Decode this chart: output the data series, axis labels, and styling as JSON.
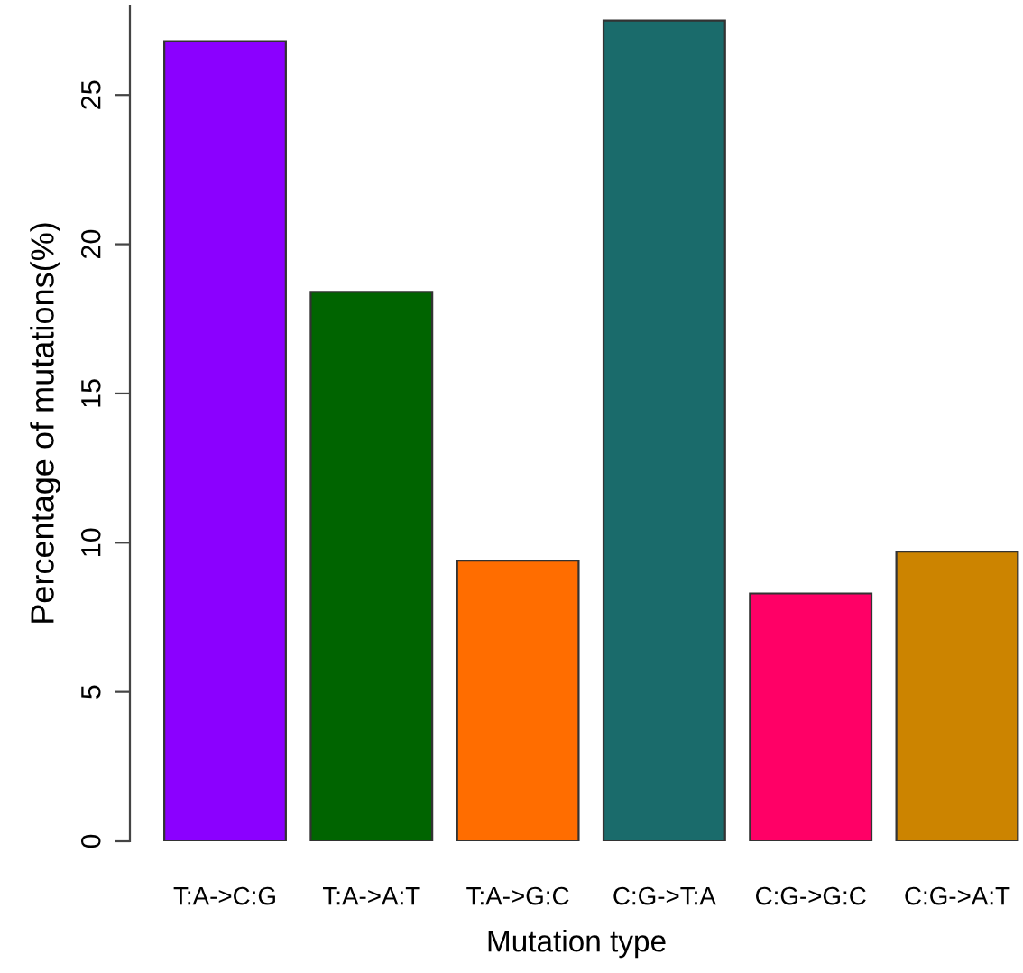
{
  "chart_data": {
    "type": "bar",
    "xlabel": "Mutation type",
    "ylabel": "Percentage of mutations(%)",
    "categories": [
      "T:A->C:G",
      "T:A->A:T",
      "T:A->G:C",
      "C:G->T:A",
      "C:G->G:C",
      "C:G->A:T"
    ],
    "values": [
      26.8,
      18.4,
      9.4,
      27.5,
      8.3,
      9.7
    ],
    "colors": [
      "#8b00ff",
      "#006400",
      "#ff6d00",
      "#1a6b6b",
      "#ff0066",
      "#cc8400"
    ],
    "ylim": [
      0,
      28
    ],
    "yticks": [
      0,
      5,
      10,
      15,
      20,
      25
    ],
    "grid": false
  }
}
